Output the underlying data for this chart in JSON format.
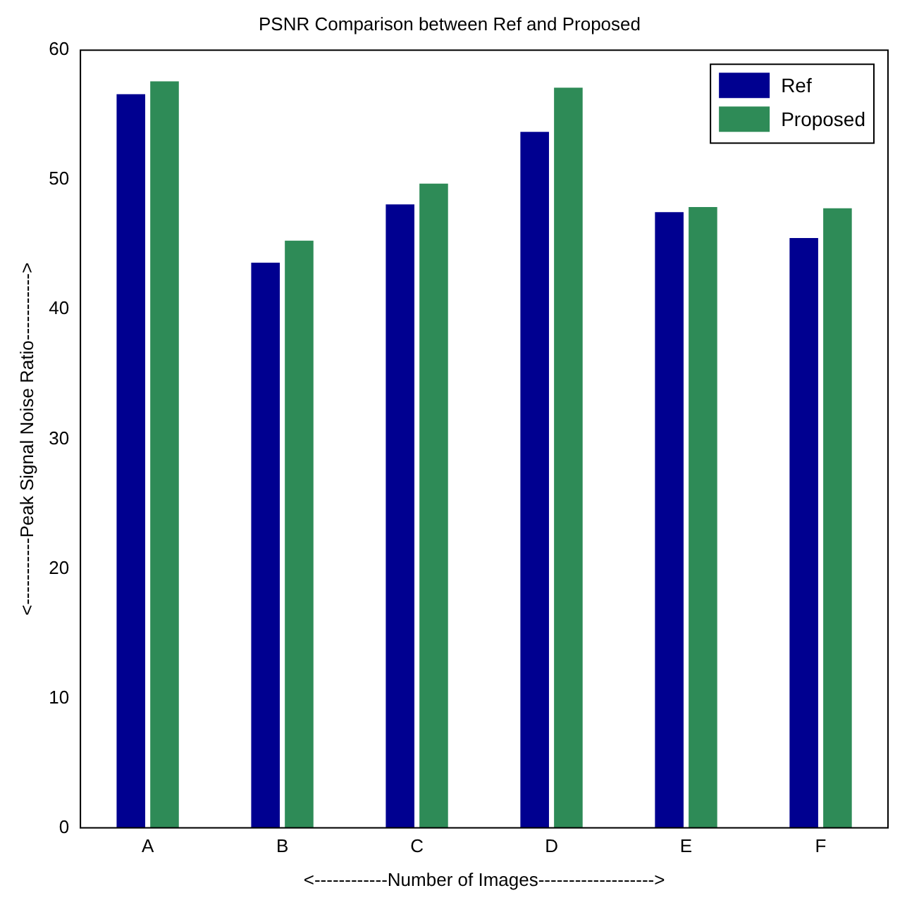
{
  "chart_data": {
    "type": "bar",
    "title": "PSNR Comparison between Ref and Proposed",
    "xlabel": "<------------Number of Images------------------->",
    "ylabel": "<-----------Peak Signal Noise Ratio----------->",
    "categories": [
      "A",
      "B",
      "C",
      "D",
      "E",
      "F"
    ],
    "series": [
      {
        "name": "Ref",
        "color": "#000090",
        "values": [
          56.6,
          43.6,
          48.1,
          53.7,
          47.5,
          45.5
        ]
      },
      {
        "name": "Proposed",
        "color": "#2e8b57",
        "values": [
          57.6,
          45.3,
          49.7,
          57.1,
          47.9,
          47.8
        ]
      }
    ],
    "ylim": [
      0,
      60
    ],
    "yticks": [
      0,
      10,
      20,
      30,
      40,
      50,
      60
    ],
    "grid": false,
    "legend": "top right"
  }
}
